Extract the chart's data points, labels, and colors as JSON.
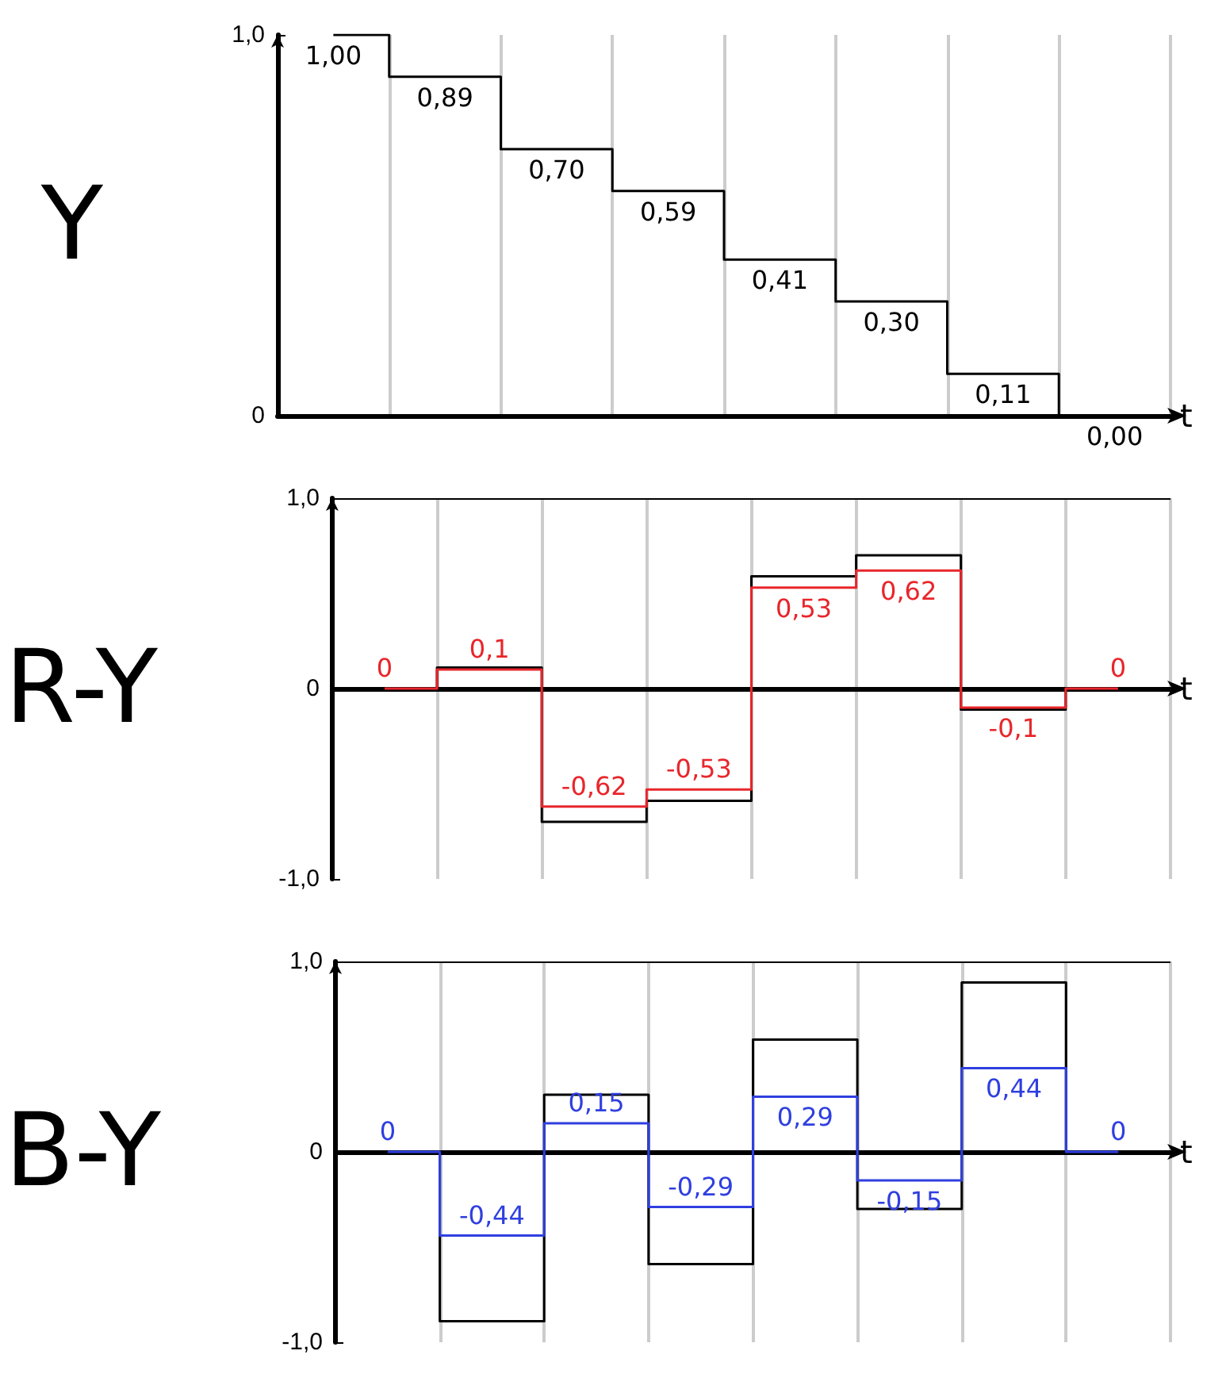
{
  "chart_data": [
    {
      "type": "step",
      "ylabel": "Y",
      "xlabel": "t",
      "categories": [
        null,
        null,
        null,
        null,
        null,
        null,
        null,
        null
      ],
      "ylim": [
        0,
        1
      ],
      "yticks": [
        {
          "value": 0,
          "label": "0"
        },
        {
          "value": 1,
          "label": "1,0"
        }
      ],
      "grid": "x",
      "tick_labels": "y",
      "marker": "none",
      "series": [
        {
          "color": "#000000",
          "values": [
            1,
            0.89,
            0.7,
            0.59,
            0.41,
            0.3,
            0.11,
            0
          ],
          "value_labels": [
            "1,00",
            "0,89",
            "0,70",
            "0,59",
            "0,41",
            "0,30",
            "0,11",
            "0,00"
          ]
        }
      ]
    },
    {
      "type": "step",
      "ylabel": "R-Y",
      "xlabel": "t",
      "categories": [
        null,
        null,
        null,
        null,
        null,
        null,
        null,
        null
      ],
      "ylim": [
        -1,
        1
      ],
      "yticks": [
        {
          "value": -1,
          "label": "-1,0"
        },
        {
          "value": 0,
          "label": "0"
        },
        {
          "value": 1,
          "label": "1,0"
        }
      ],
      "grid": "x",
      "tick_labels": "y",
      "marker": "none",
      "ref_lines": [
        {
          "axis": "y",
          "value": 1,
          "color": "#000000"
        }
      ],
      "series": [
        {
          "color": "#000000",
          "values": [
            0,
            0.11,
            -0.7,
            -0.59,
            0.59,
            0.7,
            -0.11,
            0
          ]
        },
        {
          "color": "#e8262b",
          "values": [
            0,
            0.1,
            -0.62,
            -0.53,
            0.53,
            0.62,
            -0.1,
            0
          ],
          "value_labels": [
            "0",
            "0,1",
            "-0,62",
            "-0,53",
            "0,53",
            "0,62",
            "-0,1",
            "0"
          ]
        }
      ]
    },
    {
      "type": "step",
      "ylabel": "B-Y",
      "xlabel": "t",
      "categories": [
        null,
        null,
        null,
        null,
        null,
        null,
        null,
        null
      ],
      "ylim": [
        -1,
        1
      ],
      "yticks": [
        {
          "value": -1,
          "label": "-1,0"
        },
        {
          "value": 0,
          "label": "0"
        },
        {
          "value": 1,
          "label": "1,0"
        }
      ],
      "grid": "x",
      "tick_labels": "y",
      "marker": "none",
      "ref_lines": [
        {
          "axis": "y",
          "value": 1,
          "color": "#000000"
        }
      ],
      "series": [
        {
          "color": "#000000",
          "values": [
            0,
            -0.89,
            0.3,
            -0.59,
            0.59,
            -0.3,
            0.89,
            0
          ]
        },
        {
          "color": "#2f3fe0",
          "values": [
            0,
            -0.44,
            0.15,
            -0.29,
            0.29,
            -0.15,
            0.44,
            0
          ],
          "value_labels": [
            "0",
            "-0,44",
            "0,15",
            "-0,29",
            "0,29",
            "-0,15",
            "0,44",
            "0"
          ]
        }
      ]
    }
  ]
}
